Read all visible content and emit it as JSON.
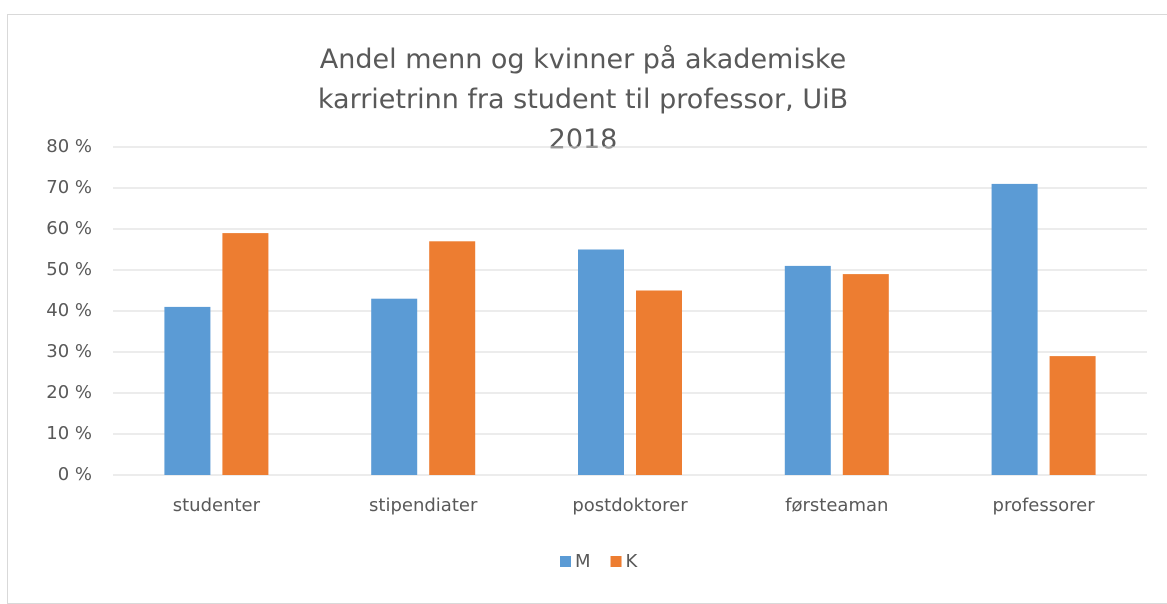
{
  "chart_data": {
    "type": "bar",
    "title": "Andel menn og kvinner på akademiske karrietrinn fra student til professor, UiB 2018",
    "categories": [
      "studenter",
      "stipendiater",
      "postdoktorer",
      "førsteaman",
      "professorer"
    ],
    "series": [
      {
        "name": "M",
        "color": "#5b9bd5",
        "values": [
          41,
          43,
          55,
          51,
          71
        ]
      },
      {
        "name": "K",
        "color": "#ed7d31",
        "values": [
          59,
          57,
          45,
          49,
          29
        ]
      }
    ],
    "ylim": [
      0,
      80
    ],
    "yticks": [
      {
        "value": 0,
        "label": "0 %"
      },
      {
        "value": 10,
        "label": "10 %"
      },
      {
        "value": 20,
        "label": "20 %"
      },
      {
        "value": 30,
        "label": "30 %"
      },
      {
        "value": 40,
        "label": "40 %"
      },
      {
        "value": 50,
        "label": "50 %"
      },
      {
        "value": 60,
        "label": "60 %"
      },
      {
        "value": 70,
        "label": "70 %"
      },
      {
        "value": 80,
        "label": "80 %"
      }
    ],
    "grid": true,
    "legend": "bottom"
  }
}
